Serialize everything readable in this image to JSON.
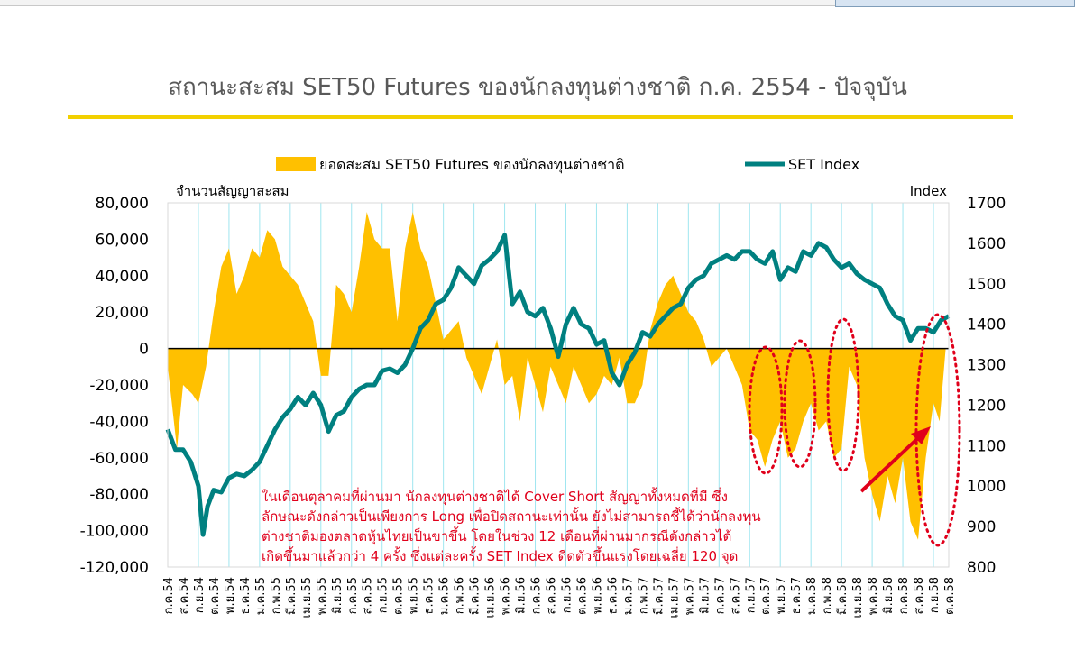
{
  "title": "สถานะสะสม SET50 Futures ของนักลงทุนต่างชาติ ก.ค. 2554 - ปัจจุบัน",
  "colors": {
    "bars": "#ffc000",
    "line": "#008080",
    "title_rule": "#f2d000",
    "annotation": "#e0001b",
    "grid": "#9fe6f0"
  },
  "annotation": [
    "ในเดือนตุลาคมที่ผ่านมา นักลงทุนต่างชาติได้ Cover Short สัญญาทั้งหมดที่มี ซึ่ง",
    "ลักษณะดังกล่าวเป็นเพียงการ Long เพื่อปิดสถานะเท่านั้น ยังไม่สามารถชี้ได้ว่านักลงทุน",
    "ต่างชาติมองตลาดหุ้นไทยเป็นขาขึ้น โดยในช่วง 12 เดือนที่ผ่านมากรณีดังกล่าวได้",
    "เกิดขึ้นมาแล้วกว่า 4 ครั้ง ซึ่งแต่ละครั้ง SET Index ดีดตัวขึ้นแรงโดยเฉลี่ย 120 จุด"
  ],
  "chart_data": {
    "type": "area",
    "title": "สถานะสะสม SET50 Futures ของนักลงทุนต่างชาติ ก.ค. 2554 - ปัจจุบัน",
    "legend": {
      "placement": "top",
      "bars": "ยอดสะสม SET50 Futures ของนักลงทุนต่างชาติ",
      "line": "SET Index"
    },
    "y_left": {
      "title": "จำนวนสัญญาสะสม",
      "ylim": [
        -120000,
        80000
      ],
      "ticks": [
        "80,000",
        "60,000",
        "40,000",
        "20,000",
        "0",
        "-20,000",
        "-40,000",
        "-60,000",
        "-80,000",
        "-100,000",
        "-120,000"
      ]
    },
    "y_right": {
      "title": "Index",
      "ylim": [
        800,
        1700
      ],
      "ticks": [
        "1700",
        "1600",
        "1500",
        "1400",
        "1300",
        "1200",
        "1100",
        "1000",
        "900",
        "800"
      ]
    },
    "categories": [
      "ก.ค.54",
      "ส.ค.54",
      "ก.ย.54",
      "ต.ค.54",
      "พ.ย.54",
      "ธ.ค.54",
      "ม.ค.55",
      "ก.พ.55",
      "มี.ค.55",
      "เม.ย.55",
      "พ.ค.55",
      "มิ.ย.55",
      "ก.ค.55",
      "ส.ค.55",
      "ก.ย.55",
      "ต.ค.55",
      "พ.ย.55",
      "ธ.ค.55",
      "ม.ค.56",
      "ก.พ.56",
      "มี.ค.56",
      "เม.ย.56",
      "พ.ค.56",
      "มิ.ย.56",
      "ก.ค.56",
      "ส.ค.56",
      "ก.ย.56",
      "ต.ค.56",
      "พ.ย.56",
      "ธ.ค.56",
      "ม.ค.57",
      "ก.พ.57",
      "มี.ค.57",
      "เม.ย.57",
      "พ.ค.57",
      "มิ.ย.57",
      "ก.ค.57",
      "ส.ค.57",
      "ก.ย.57",
      "ต.ค.57",
      "พ.ย.57",
      "ธ.ค.57",
      "ม.ค.58",
      "ก.พ.58",
      "มี.ค.58",
      "เม.ย.58",
      "พ.ค.58",
      "มิ.ย.58",
      "ก.ค.58",
      "ส.ค.58",
      "ก.ย.58",
      "ต.ค.58"
    ],
    "grid": "vertical lines at every second month",
    "series": [
      {
        "name": "ยอดสะสม SET50 Futures ของนักลงทุนต่างชาติ",
        "axis": "left",
        "kind": "area",
        "points": [
          [
            0,
            -10000
          ],
          [
            0.6,
            -55000
          ],
          [
            1,
            -20000
          ],
          [
            1.6,
            -25000
          ],
          [
            2,
            -30000
          ],
          [
            2.5,
            -10000
          ],
          [
            3,
            20000
          ],
          [
            3.5,
            45000
          ],
          [
            4,
            55000
          ],
          [
            4.5,
            30000
          ],
          [
            5,
            40000
          ],
          [
            5.5,
            55000
          ],
          [
            6,
            50000
          ],
          [
            6.5,
            65000
          ],
          [
            7,
            60000
          ],
          [
            7.5,
            45000
          ],
          [
            8,
            40000
          ],
          [
            8.5,
            35000
          ],
          [
            9,
            25000
          ],
          [
            9.5,
            15000
          ],
          [
            10,
            -15000
          ],
          [
            10.5,
            -15000
          ],
          [
            11,
            35000
          ],
          [
            11.5,
            30000
          ],
          [
            12,
            20000
          ],
          [
            12.5,
            45000
          ],
          [
            13,
            75000
          ],
          [
            13.5,
            60000
          ],
          [
            14,
            55000
          ],
          [
            14.5,
            55000
          ],
          [
            15,
            15000
          ],
          [
            15.5,
            55000
          ],
          [
            16,
            75000
          ],
          [
            16.5,
            55000
          ],
          [
            17,
            45000
          ],
          [
            17.5,
            25000
          ],
          [
            18,
            5000
          ],
          [
            18.5,
            10000
          ],
          [
            19,
            15000
          ],
          [
            19.5,
            -5000
          ],
          [
            20,
            -15000
          ],
          [
            20.5,
            -25000
          ],
          [
            21,
            -10000
          ],
          [
            21.5,
            5000
          ],
          [
            22,
            -20000
          ],
          [
            22.5,
            -15000
          ],
          [
            23,
            -40000
          ],
          [
            23.5,
            -5000
          ],
          [
            24,
            -20000
          ],
          [
            24.5,
            -35000
          ],
          [
            25,
            -10000
          ],
          [
            25.5,
            -20000
          ],
          [
            26,
            -30000
          ],
          [
            26.5,
            -10000
          ],
          [
            27,
            -20000
          ],
          [
            27.5,
            -30000
          ],
          [
            28,
            -25000
          ],
          [
            28.5,
            -15000
          ],
          [
            29,
            -20000
          ],
          [
            29.5,
            -5000
          ],
          [
            30,
            -30000
          ],
          [
            30.5,
            -30000
          ],
          [
            31,
            -20000
          ],
          [
            31.5,
            10000
          ],
          [
            32,
            25000
          ],
          [
            32.5,
            35000
          ],
          [
            33,
            40000
          ],
          [
            33.5,
            30000
          ],
          [
            34,
            20000
          ],
          [
            34.5,
            15000
          ],
          [
            35,
            5000
          ],
          [
            35.5,
            -10000
          ],
          [
            36,
            -5000
          ],
          [
            36.5,
            0
          ],
          [
            37,
            -10000
          ],
          [
            37.5,
            -20000
          ],
          [
            38,
            -45000
          ],
          [
            38.5,
            -50000
          ],
          [
            39,
            -65000
          ],
          [
            39.5,
            -50000
          ],
          [
            40,
            -40000
          ],
          [
            40.5,
            -60000
          ],
          [
            41,
            -55000
          ],
          [
            41.5,
            -40000
          ],
          [
            42,
            -30000
          ],
          [
            42.5,
            -45000
          ],
          [
            43,
            -40000
          ],
          [
            43.5,
            -60000
          ],
          [
            44,
            -55000
          ],
          [
            44.5,
            -10000
          ],
          [
            45,
            -20000
          ],
          [
            45.5,
            -60000
          ],
          [
            46,
            -80000
          ],
          [
            46.5,
            -95000
          ],
          [
            47,
            -70000
          ],
          [
            47.5,
            -85000
          ],
          [
            48,
            -60000
          ],
          [
            48.5,
            -95000
          ],
          [
            49,
            -105000
          ],
          [
            49.5,
            -60000
          ],
          [
            50,
            -30000
          ],
          [
            50.4,
            -40000
          ],
          [
            50.8,
            0
          ]
        ]
      },
      {
        "name": "SET Index",
        "axis": "right",
        "kind": "line",
        "points": [
          [
            0,
            1140
          ],
          [
            0.5,
            1090
          ],
          [
            1,
            1090
          ],
          [
            1.5,
            1060
          ],
          [
            2,
            1000
          ],
          [
            2.3,
            880
          ],
          [
            2.6,
            950
          ],
          [
            3,
            990
          ],
          [
            3.5,
            985
          ],
          [
            4,
            1020
          ],
          [
            4.5,
            1030
          ],
          [
            5,
            1025
          ],
          [
            5.5,
            1040
          ],
          [
            6,
            1060
          ],
          [
            6.5,
            1100
          ],
          [
            7,
            1140
          ],
          [
            7.5,
            1170
          ],
          [
            8,
            1190
          ],
          [
            8.5,
            1220
          ],
          [
            9,
            1200
          ],
          [
            9.5,
            1230
          ],
          [
            10,
            1200
          ],
          [
            10.5,
            1135
          ],
          [
            11,
            1175
          ],
          [
            11.5,
            1185
          ],
          [
            12,
            1220
          ],
          [
            12.5,
            1240
          ],
          [
            13,
            1250
          ],
          [
            13.5,
            1250
          ],
          [
            14,
            1285
          ],
          [
            14.5,
            1290
          ],
          [
            15,
            1280
          ],
          [
            15.5,
            1300
          ],
          [
            16,
            1340
          ],
          [
            16.5,
            1390
          ],
          [
            17,
            1410
          ],
          [
            17.5,
            1450
          ],
          [
            18,
            1460
          ],
          [
            18.5,
            1490
          ],
          [
            19,
            1540
          ],
          [
            19.5,
            1520
          ],
          [
            20,
            1500
          ],
          [
            20.5,
            1545
          ],
          [
            21,
            1560
          ],
          [
            21.5,
            1580
          ],
          [
            22,
            1620
          ],
          [
            22.5,
            1450
          ],
          [
            23,
            1480
          ],
          [
            23.5,
            1430
          ],
          [
            24,
            1420
          ],
          [
            24.5,
            1440
          ],
          [
            25,
            1390
          ],
          [
            25.5,
            1320
          ],
          [
            26,
            1400
          ],
          [
            26.5,
            1440
          ],
          [
            27,
            1400
          ],
          [
            27.5,
            1390
          ],
          [
            28,
            1350
          ],
          [
            28.5,
            1360
          ],
          [
            29,
            1280
          ],
          [
            29.5,
            1250
          ],
          [
            30,
            1300
          ],
          [
            30.5,
            1330
          ],
          [
            31,
            1380
          ],
          [
            31.5,
            1370
          ],
          [
            32,
            1400
          ],
          [
            32.5,
            1420
          ],
          [
            33,
            1440
          ],
          [
            33.5,
            1450
          ],
          [
            34,
            1490
          ],
          [
            34.5,
            1510
          ],
          [
            35,
            1520
          ],
          [
            35.5,
            1550
          ],
          [
            36,
            1560
          ],
          [
            36.5,
            1570
          ],
          [
            37,
            1560
          ],
          [
            37.5,
            1580
          ],
          [
            38,
            1580
          ],
          [
            38.5,
            1560
          ],
          [
            39,
            1550
          ],
          [
            39.5,
            1580
          ],
          [
            40,
            1510
          ],
          [
            40.5,
            1540
          ],
          [
            41,
            1530
          ],
          [
            41.5,
            1580
          ],
          [
            42,
            1570
          ],
          [
            42.5,
            1600
          ],
          [
            43,
            1590
          ],
          [
            43.5,
            1560
          ],
          [
            44,
            1540
          ],
          [
            44.5,
            1550
          ],
          [
            45,
            1525
          ],
          [
            45.5,
            1510
          ],
          [
            46,
            1500
          ],
          [
            46.5,
            1490
          ],
          [
            47,
            1450
          ],
          [
            47.5,
            1420
          ],
          [
            48,
            1410
          ],
          [
            48.5,
            1360
          ],
          [
            49,
            1390
          ],
          [
            49.5,
            1390
          ],
          [
            50,
            1380
          ],
          [
            50.5,
            1410
          ],
          [
            51,
            1420
          ]
        ]
      }
    ]
  }
}
